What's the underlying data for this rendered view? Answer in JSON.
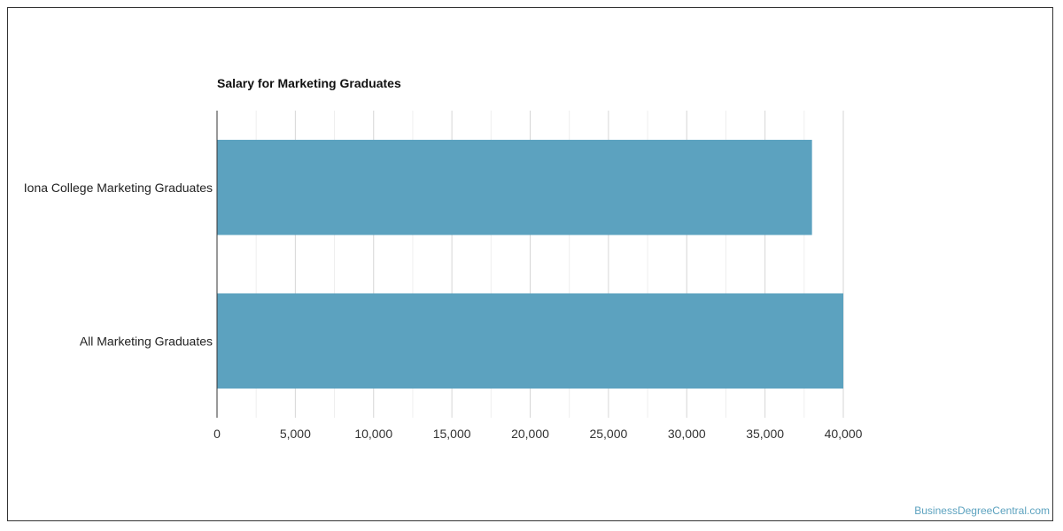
{
  "chart_data": {
    "type": "bar",
    "orientation": "horizontal",
    "title": "Salary for Marketing Graduates",
    "categories": [
      "Iona College Marketing Graduates",
      "All Marketing Graduates"
    ],
    "values": [
      38000,
      40000
    ],
    "xlabel": "",
    "ylabel": "",
    "xlim": [
      0,
      40000
    ],
    "ticks": [
      0,
      5000,
      10000,
      15000,
      20000,
      25000,
      30000,
      35000,
      40000
    ],
    "tick_labels": [
      "0",
      "5,000",
      "10,000",
      "15,000",
      "20,000",
      "25,000",
      "30,000",
      "35,000",
      "40,000"
    ],
    "grid": true,
    "bar_color": "#5ca2bf"
  },
  "watermark": "BusinessDegreeCentral.com",
  "colors": {
    "watermark": "#5ca2bf",
    "gridline": "#dddddd",
    "axis": "#333333"
  }
}
